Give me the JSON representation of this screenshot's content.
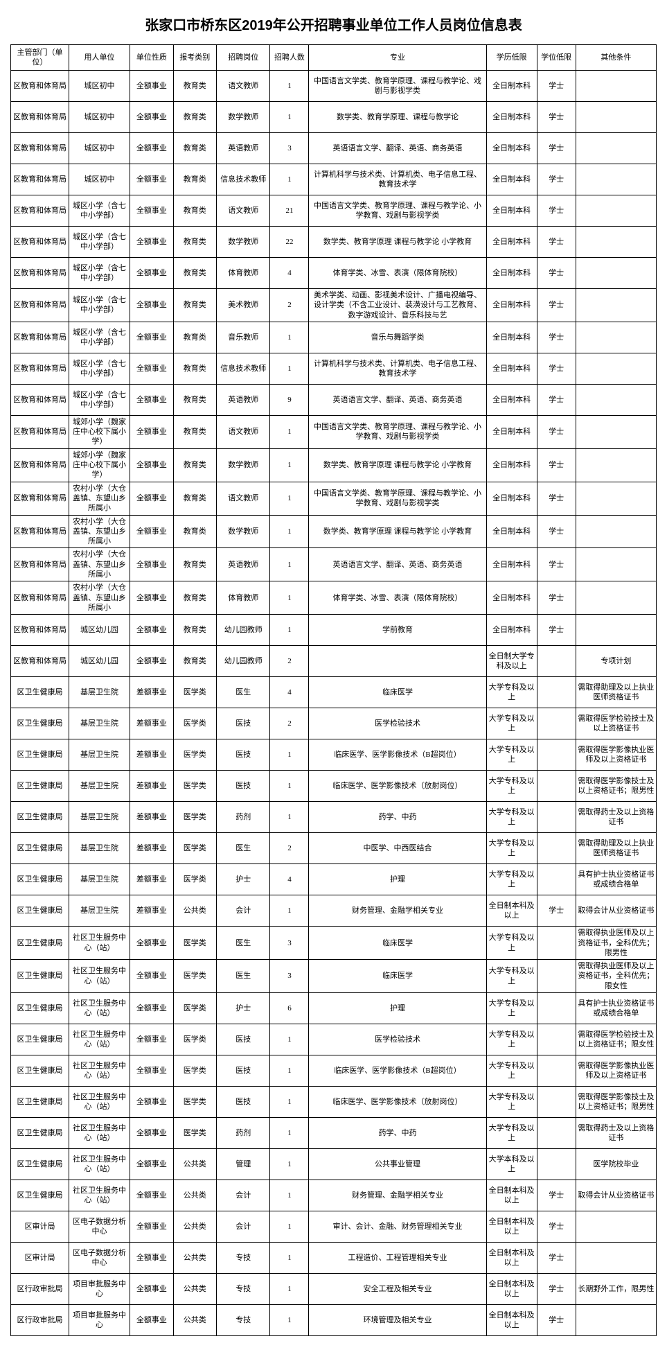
{
  "title": "张家口市桥东区2019年公开招聘事业单位工作人员岗位信息表",
  "columns": [
    "主管部门（单位）",
    "用人单位",
    "单位性质",
    "报考类别",
    "招聘岗位",
    "招聘人数",
    "专业",
    "学历低限",
    "学位低限",
    "其他条件"
  ],
  "rows": [
    [
      "区教育和体育局",
      "城区初中",
      "全额事业",
      "教育类",
      "语文教师",
      "1",
      "中国语言文学类、教育学原理、课程与教学论、戏剧与影视学类",
      "全日制本科",
      "学士",
      ""
    ],
    [
      "区教育和体育局",
      "城区初中",
      "全额事业",
      "教育类",
      "数学教师",
      "1",
      "数学类、教育学原理、课程与教学论",
      "全日制本科",
      "学士",
      ""
    ],
    [
      "区教育和体育局",
      "城区初中",
      "全额事业",
      "教育类",
      "英语教师",
      "3",
      "英语语言文学、翻译、英语、商务英语",
      "全日制本科",
      "学士",
      ""
    ],
    [
      "区教育和体育局",
      "城区初中",
      "全额事业",
      "教育类",
      "信息技术教师",
      "1",
      "计算机科学与技术类、计算机类、电子信息工程、教育技术学",
      "全日制本科",
      "学士",
      ""
    ],
    [
      "区教育和体育局",
      "城区小学（含七中小学部）",
      "全额事业",
      "教育类",
      "语文教师",
      "21",
      "中国语言文学类、教育学原理、课程与教学论、小学教育、戏剧与影视学类",
      "全日制本科",
      "学士",
      ""
    ],
    [
      "区教育和体育局",
      "城区小学（含七中小学部）",
      "全额事业",
      "教育类",
      "数学教师",
      "22",
      "数学类、教育学原理 课程与教学论 小学教育",
      "全日制本科",
      "学士",
      ""
    ],
    [
      "区教育和体育局",
      "城区小学（含七中小学部）",
      "全额事业",
      "教育类",
      "体育教师",
      "4",
      "体育学类、冰雪、表演（限体育院校）",
      "全日制本科",
      "学士",
      ""
    ],
    [
      "区教育和体育局",
      "城区小学（含七中小学部）",
      "全额事业",
      "教育类",
      "美术教师",
      "2",
      "美术学类、动画、影视美术设计、广播电视编导、设计学类（不含工业设计、装潢设计与工艺教育、数字游戏设计、音乐科技与艺",
      "全日制本科",
      "学士",
      ""
    ],
    [
      "区教育和体育局",
      "城区小学（含七中小学部）",
      "全额事业",
      "教育类",
      "音乐教师",
      "1",
      "音乐与舞蹈学类",
      "全日制本科",
      "学士",
      ""
    ],
    [
      "区教育和体育局",
      "城区小学（含七中小学部）",
      "全额事业",
      "教育类",
      "信息技术教师",
      "1",
      "计算机科学与技术类、计算机类、电子信息工程、教育技术学",
      "全日制本科",
      "学士",
      ""
    ],
    [
      "区教育和体育局",
      "城区小学（含七中小学部）",
      "全额事业",
      "教育类",
      "英语教师",
      "9",
      "英语语言文学、翻译、英语、商务英语",
      "全日制本科",
      "学士",
      ""
    ],
    [
      "区教育和体育局",
      "城郊小学（魏家庄中心校下属小学）",
      "全额事业",
      "教育类",
      "语文教师",
      "1",
      "中国语言文学类、教育学原理、课程与教学论、小学教育、戏剧与影视学类",
      "全日制本科",
      "学士",
      ""
    ],
    [
      "区教育和体育局",
      "城郊小学（魏家庄中心校下属小学）",
      "全额事业",
      "教育类",
      "数学教师",
      "1",
      "数学类、教育学原理 课程与教学论 小学教育",
      "全日制本科",
      "学士",
      ""
    ],
    [
      "区教育和体育局",
      "农村小学（大仓盖镇、东望山乡所属小",
      "全额事业",
      "教育类",
      "语文教师",
      "1",
      "中国语言文学类、教育学原理、课程与教学论、小学教育、戏剧与影视学类",
      "全日制本科",
      "学士",
      ""
    ],
    [
      "区教育和体育局",
      "农村小学（大仓盖镇、东望山乡所属小",
      "全额事业",
      "教育类",
      "数学教师",
      "1",
      "数学类、教育学原理 课程与教学论 小学教育",
      "全日制本科",
      "学士",
      ""
    ],
    [
      "区教育和体育局",
      "农村小学（大仓盖镇、东望山乡所属小",
      "全额事业",
      "教育类",
      "英语教师",
      "1",
      "英语语言文学、翻译、英语、商务英语",
      "全日制本科",
      "学士",
      ""
    ],
    [
      "区教育和体育局",
      "农村小学（大仓盖镇、东望山乡所属小",
      "全额事业",
      "教育类",
      "体育教师",
      "1",
      "体育学类、冰雪、表演（限体育院校）",
      "全日制本科",
      "学士",
      ""
    ],
    [
      "区教育和体育局",
      "城区幼儿园",
      "全额事业",
      "教育类",
      "幼儿园教师",
      "1",
      "学前教育",
      "全日制本科",
      "学士",
      ""
    ],
    [
      "区教育和体育局",
      "城区幼儿园",
      "全额事业",
      "教育类",
      "幼儿园教师",
      "2",
      "",
      "全日制大学专科及以上",
      "",
      "专项计划"
    ],
    [
      "区卫生健康局",
      "基层卫生院",
      "差额事业",
      "医学类",
      "医生",
      "4",
      "临床医学",
      "大学专科及以上",
      "",
      "需取得助理及以上执业医师资格证书"
    ],
    [
      "区卫生健康局",
      "基层卫生院",
      "差额事业",
      "医学类",
      "医技",
      "2",
      "医学检验技术",
      "大学专科及以上",
      "",
      "需取得医学检验技士及以上资格证书"
    ],
    [
      "区卫生健康局",
      "基层卫生院",
      "差额事业",
      "医学类",
      "医技",
      "1",
      "临床医学、医学影像技术（B超岗位）",
      "大学专科及以上",
      "",
      "需取得医学影像执业医师及以上资格证书"
    ],
    [
      "区卫生健康局",
      "基层卫生院",
      "差额事业",
      "医学类",
      "医技",
      "1",
      "临床医学、医学影像技术（放射岗位）",
      "大学专科及以上",
      "",
      "需取得医学影像技士及以上资格证书；限男性"
    ],
    [
      "区卫生健康局",
      "基层卫生院",
      "差额事业",
      "医学类",
      "药剂",
      "1",
      "药学、中药",
      "大学专科及以上",
      "",
      "需取得药士及以上资格证书"
    ],
    [
      "区卫生健康局",
      "基层卫生院",
      "差额事业",
      "医学类",
      "医生",
      "2",
      "中医学、中西医结合",
      "大学专科及以上",
      "",
      "需取得助理及以上执业医师资格证书"
    ],
    [
      "区卫生健康局",
      "基层卫生院",
      "差额事业",
      "医学类",
      "护士",
      "4",
      "护理",
      "大学专科及以上",
      "",
      "具有护士执业资格证书或成绩合格单"
    ],
    [
      "区卫生健康局",
      "基层卫生院",
      "差额事业",
      "公共类",
      "会计",
      "1",
      "财务管理、金融学相关专业",
      "全日制本科及以上",
      "学士",
      "取得会计从业资格证书"
    ],
    [
      "区卫生健康局",
      "社区卫生服务中心（站）",
      "全额事业",
      "医学类",
      "医生",
      "3",
      "临床医学",
      "大学专科及以上",
      "",
      "需取得执业医师及以上资格证书，全科优先；限男性"
    ],
    [
      "区卫生健康局",
      "社区卫生服务中心（站）",
      "全额事业",
      "医学类",
      "医生",
      "3",
      "临床医学",
      "大学专科及以上",
      "",
      "需取得执业医师及以上资格证书，全科优先；限女性"
    ],
    [
      "区卫生健康局",
      "社区卫生服务中心（站）",
      "全额事业",
      "医学类",
      "护士",
      "6",
      "护理",
      "大学专科及以上",
      "",
      "具有护士执业资格证书或成绩合格单"
    ],
    [
      "区卫生健康局",
      "社区卫生服务中心（站）",
      "全额事业",
      "医学类",
      "医技",
      "1",
      "医学检验技术",
      "大学专科及以上",
      "",
      "需取得医学检验技士及以上资格证书；限女性"
    ],
    [
      "区卫生健康局",
      "社区卫生服务中心（站）",
      "全额事业",
      "医学类",
      "医技",
      "1",
      "临床医学、医学影像技术（B超岗位）",
      "大学专科及以上",
      "",
      "需取得医学影像执业医师及以上资格证书"
    ],
    [
      "区卫生健康局",
      "社区卫生服务中心（站）",
      "全额事业",
      "医学类",
      "医技",
      "1",
      "临床医学、医学影像技术（放射岗位）",
      "大学专科及以上",
      "",
      "需取得医学影像技士及以上资格证书；限男性"
    ],
    [
      "区卫生健康局",
      "社区卫生服务中心（站）",
      "全额事业",
      "医学类",
      "药剂",
      "1",
      "药学、中药",
      "大学专科及以上",
      "",
      "需取得药士及以上资格证书"
    ],
    [
      "区卫生健康局",
      "社区卫生服务中心（站）",
      "全额事业",
      "公共类",
      "管理",
      "1",
      "公共事业管理",
      "大学本科及以上",
      "",
      "医学院校毕业"
    ],
    [
      "区卫生健康局",
      "社区卫生服务中心（站）",
      "全额事业",
      "公共类",
      "会计",
      "1",
      "财务管理、金融学相关专业",
      "全日制本科及以上",
      "学士",
      "取得会计从业资格证书"
    ],
    [
      "区审计局",
      "区电子数据分析中心",
      "全额事业",
      "公共类",
      "会计",
      "1",
      "审计、会计、金融、财务管理相关专业",
      "全日制本科及以上",
      "学士",
      ""
    ],
    [
      "区审计局",
      "区电子数据分析中心",
      "全额事业",
      "公共类",
      "专技",
      "1",
      "工程造价、工程管理相关专业",
      "全日制本科及以上",
      "学士",
      ""
    ],
    [
      "区行政审批局",
      "项目审批服务中心",
      "全额事业",
      "公共类",
      "专技",
      "1",
      "安全工程及相关专业",
      "全日制本科及以上",
      "学士",
      "长期野外工作，限男性"
    ],
    [
      "区行政审批局",
      "项目审批服务中心",
      "全额事业",
      "公共类",
      "专技",
      "1",
      "环境管理及相关专业",
      "全日制本科及以上",
      "学士",
      ""
    ]
  ]
}
